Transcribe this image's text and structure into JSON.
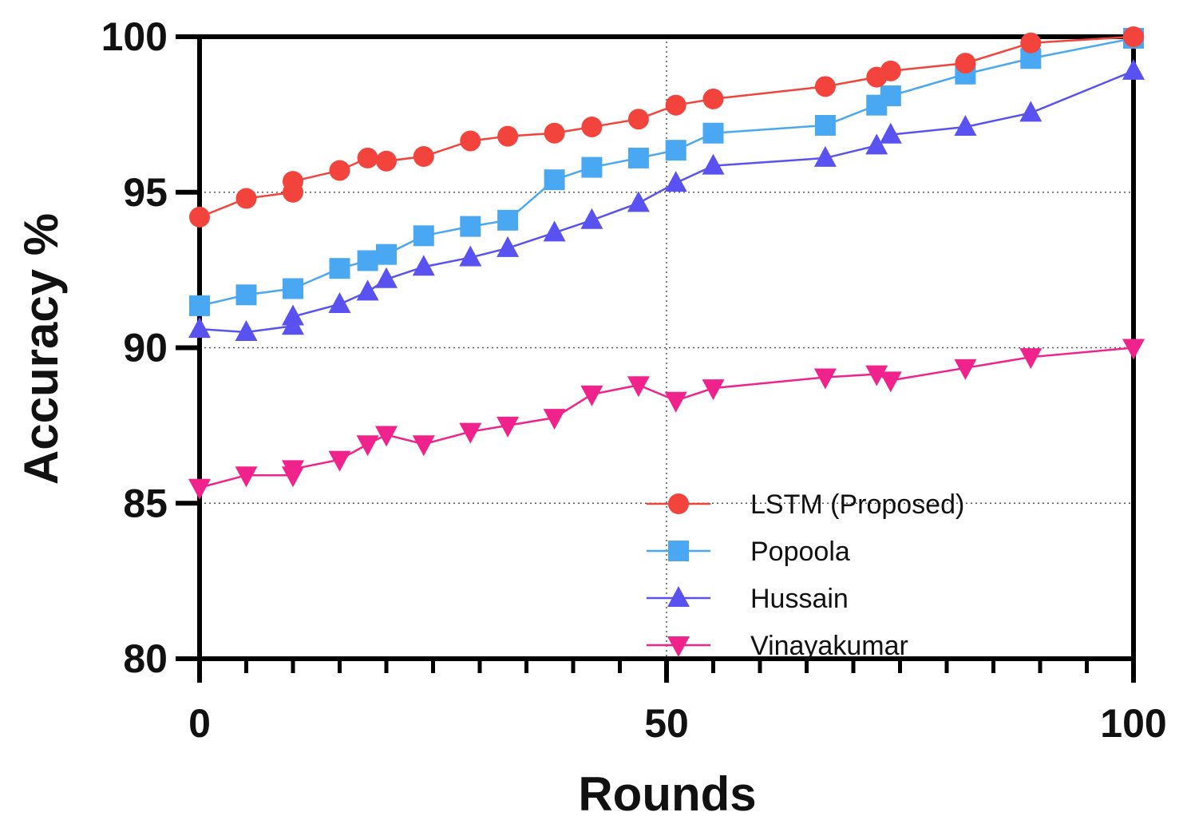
{
  "chart_data": {
    "type": "line",
    "title": "",
    "xlabel": "Rounds",
    "ylabel": "Accuracy %",
    "xlim": [
      0,
      100
    ],
    "ylim": [
      80,
      100
    ],
    "xticks": [
      0,
      50,
      100
    ],
    "yticks": [
      80,
      85,
      90,
      95,
      100
    ],
    "x_minor_step": 5,
    "grid": "dotted at x=50 and y=85,90,95",
    "legend_position": "bottom-right",
    "series": [
      {
        "name": "LSTM (Proposed)",
        "color": "#f2433c",
        "marker": "circle",
        "x": [
          0,
          5,
          10,
          10,
          15,
          18,
          20,
          24,
          29,
          33,
          38,
          42,
          47,
          51,
          55,
          67,
          72.5,
          74,
          82,
          89,
          100
        ],
        "y": [
          94.2,
          94.8,
          95.0,
          95.35,
          95.7,
          96.1,
          96.0,
          96.15,
          96.65,
          96.8,
          96.9,
          97.1,
          97.35,
          97.8,
          98.0,
          98.4,
          98.7,
          98.9,
          99.15,
          99.8,
          100.0
        ]
      },
      {
        "name": "Popoola",
        "color": "#4aa8f2",
        "marker": "square",
        "x": [
          0,
          5,
          10,
          15,
          18,
          20,
          24,
          29,
          33,
          38,
          42,
          47,
          51,
          55,
          67,
          72.5,
          74,
          82,
          89,
          100
        ],
        "y": [
          91.35,
          91.7,
          91.9,
          92.55,
          92.8,
          93.0,
          93.6,
          93.9,
          94.1,
          95.4,
          95.8,
          96.1,
          96.35,
          96.9,
          97.15,
          97.8,
          98.1,
          98.8,
          99.3,
          99.95
        ]
      },
      {
        "name": "Hussain",
        "color": "#5a52f0",
        "marker": "triangle-up",
        "x": [
          0,
          5,
          10,
          10,
          15,
          18,
          20,
          24,
          29,
          33,
          38,
          42,
          47,
          51,
          55,
          67,
          72.5,
          74,
          82,
          89,
          100
        ],
        "y": [
          90.6,
          90.5,
          90.7,
          91.0,
          91.4,
          91.8,
          92.2,
          92.6,
          92.9,
          93.2,
          93.7,
          94.1,
          94.65,
          95.3,
          95.85,
          96.1,
          96.5,
          96.85,
          97.1,
          97.55,
          98.9
        ]
      },
      {
        "name": "Vinayakumar",
        "color": "#f0238c",
        "marker": "triangle-down",
        "x": [
          0,
          5,
          10,
          10,
          15,
          18,
          20,
          24,
          29,
          33,
          38,
          42,
          47,
          51,
          55,
          67,
          72.5,
          74,
          82,
          89,
          100
        ],
        "y": [
          85.5,
          85.9,
          85.9,
          86.1,
          86.4,
          86.9,
          87.2,
          86.9,
          87.3,
          87.5,
          87.75,
          88.5,
          88.8,
          88.3,
          88.7,
          89.05,
          89.15,
          88.95,
          89.35,
          89.7,
          90.0
        ]
      }
    ]
  }
}
